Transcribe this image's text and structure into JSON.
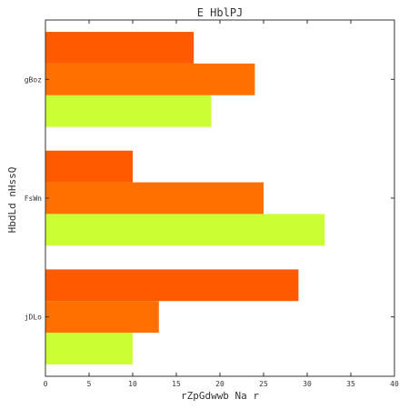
{
  "chart_data": {
    "type": "bar",
    "orientation": "horizontal",
    "title": "E HblPJ",
    "xlabel": "rZpGdwwb Na r",
    "ylabel": "HbdLd nHssQ",
    "categories": [
      "jDLo",
      "FsWn",
      "gBoz"
    ],
    "series": [
      {
        "color": "#ccff33",
        "values": [
          10,
          32,
          19
        ]
      },
      {
        "color": "#ff7000",
        "values": [
          13,
          25,
          24
        ]
      },
      {
        "color": "#ff5a00",
        "values": [
          29,
          10,
          17
        ]
      }
    ],
    "xlim": [
      0,
      40
    ],
    "xticks": [
      0,
      5,
      10,
      15,
      20,
      25,
      30,
      35,
      40
    ],
    "grid": false,
    "legend": "none"
  }
}
